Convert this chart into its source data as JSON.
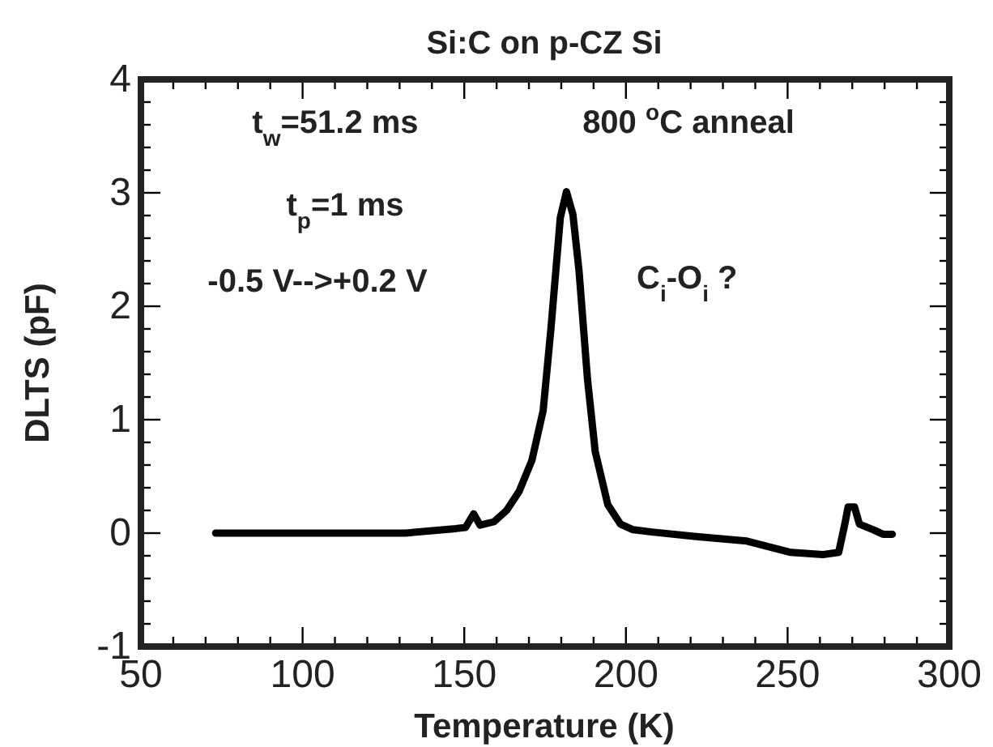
{
  "chart_data": {
    "type": "line",
    "title": "Si:C on p-CZ Si",
    "xlabel": "Temperature (K)",
    "ylabel": "DLTS (pF)",
    "annotations": [
      "t$_{w}$=51.2 ms",
      "t$_{p}$=1 ms",
      "-0.5 V-->+0.2 V",
      "800 $^{o}$C anneal",
      "C$_{i}$-O$_{i}$ ?"
    ],
    "x": [
      73.1,
      100,
      131.8,
      147.4,
      150.4,
      152.9,
      154.9,
      159.2,
      163.1,
      167,
      170.9,
      174.4,
      176.8,
      179.7,
      181.6,
      183.6,
      185.5,
      188.1,
      190.5,
      194.4,
      198.3,
      202.2,
      208,
      221.7,
      237.4,
      251,
      260.9,
      265.8,
      267.7,
      268.7,
      270.7,
      272.2,
      276.5,
      279.5,
      282.4
    ],
    "series": [
      {
        "color": "#000000",
        "values": [
          0,
          0,
          0,
          0.04,
          0.05,
          0.17,
          0.07,
          0.1,
          0.2,
          0.37,
          0.64,
          1.08,
          1.8,
          2.78,
          3.01,
          2.81,
          2.31,
          1.36,
          0.72,
          0.25,
          0.08,
          0.03,
          0.01,
          -0.03,
          -0.07,
          -0.17,
          -0.19,
          -0.17,
          0.08,
          0.23,
          0.23,
          0.08,
          0.03,
          -0.01,
          -0.01
        ]
      }
    ],
    "xlim": [
      50,
      300
    ],
    "ylim": [
      -1,
      4
    ],
    "xticks": [
      50,
      {
        "value": 60,
        "label": null
      },
      {
        "value": 70,
        "label": null
      },
      {
        "value": 80,
        "label": null
      },
      {
        "value": 90,
        "label": null
      },
      100,
      {
        "value": 110,
        "label": null
      },
      {
        "value": 120,
        "label": null
      },
      {
        "value": 130,
        "label": null
      },
      {
        "value": 140,
        "label": null
      },
      150,
      {
        "value": 160,
        "label": null
      },
      {
        "value": 170,
        "label": null
      },
      {
        "value": 180,
        "label": null
      },
      {
        "value": 190,
        "label": null
      },
      200,
      {
        "value": 210,
        "label": null
      },
      {
        "value": 220,
        "label": null
      },
      {
        "value": 230,
        "label": null
      },
      {
        "value": 240,
        "label": null
      },
      250,
      {
        "value": 260,
        "label": null
      },
      {
        "value": 270,
        "label": null
      },
      {
        "value": 280,
        "label": null
      },
      {
        "value": 290,
        "label": null
      },
      300
    ],
    "yticks": [
      -1,
      {
        "value": -0.8,
        "label": null
      },
      {
        "value": -0.6,
        "label": null
      },
      {
        "value": -0.4,
        "label": null
      },
      {
        "value": -0.2,
        "label": null
      },
      0,
      {
        "value": 0.2,
        "label": null
      },
      {
        "value": 0.4,
        "label": null
      },
      {
        "value": 0.6,
        "label": null
      },
      {
        "value": 0.8,
        "label": null
      },
      1,
      {
        "value": 1.2,
        "label": null
      },
      {
        "value": 1.4,
        "label": null
      },
      {
        "value": 1.6,
        "label": null
      },
      {
        "value": 1.8,
        "label": null
      },
      2,
      {
        "value": 2.2,
        "label": null
      },
      {
        "value": 2.4,
        "label": null
      },
      {
        "value": 2.6,
        "label": null
      },
      {
        "value": 2.8,
        "label": null
      },
      3,
      {
        "value": 3.2,
        "label": null
      },
      {
        "value": 3.4,
        "label": null
      },
      {
        "value": 3.6,
        "label": null
      },
      {
        "value": 3.8,
        "label": null
      },
      4
    ],
    "grid": false,
    "legend": false,
    "marker": "none",
    "line_style": "solid"
  }
}
